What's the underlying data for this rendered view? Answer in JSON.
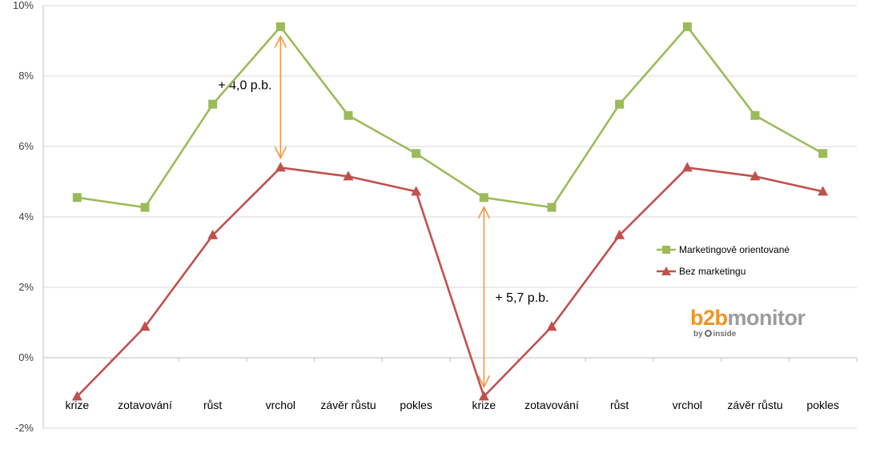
{
  "chart_data": {
    "type": "line",
    "categories": [
      "krize",
      "zotavování",
      "růst",
      "vrchol",
      "závěr růstu",
      "pokles",
      "krize",
      "zotavování",
      "růst",
      "vrchol",
      "závěr růstu",
      "pokles"
    ],
    "series": [
      {
        "name": "Marketingově orientované",
        "color": "#9bbb59",
        "marker": "square",
        "values": [
          4.55,
          4.27,
          7.2,
          9.4,
          6.88,
          5.8,
          4.55,
          4.27,
          7.2,
          9.4,
          6.88,
          5.8
        ]
      },
      {
        "name": "Bez marketingu",
        "color": "#c0504d",
        "marker": "triangle",
        "values": [
          -1.1,
          0.88,
          3.48,
          5.4,
          5.15,
          4.72,
          -1.1,
          0.88,
          3.48,
          5.4,
          5.15,
          4.72
        ]
      }
    ],
    "yticks": [
      "-2%",
      "0%",
      "2%",
      "4%",
      "6%",
      "8%",
      "10%"
    ],
    "ylim": [
      -2,
      10
    ],
    "grid": true,
    "legend_position": "right",
    "annotations": [
      {
        "label": "+ 4,0 p.b.",
        "category_index": 3,
        "from": 9.4,
        "to": 5.4,
        "color": "#f79646"
      },
      {
        "label": "+ 5,7 p.b.",
        "category_index": 6,
        "from": 4.55,
        "to": -1.1,
        "color": "#f79646"
      }
    ]
  },
  "logo": {
    "brand_prefix": "b2b",
    "brand_suffix": "monitor",
    "byline_prefix": "by",
    "byline_name": "inside"
  }
}
